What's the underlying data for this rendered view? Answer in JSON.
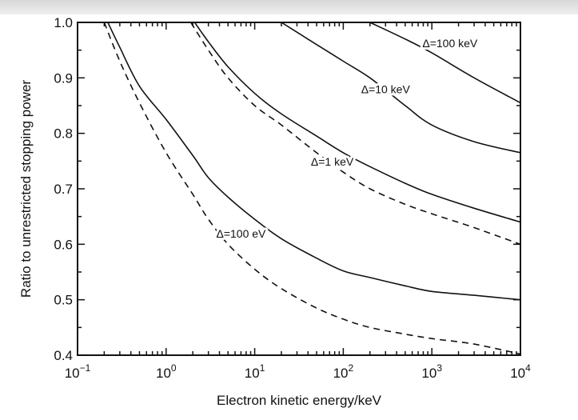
{
  "chart_data": {
    "type": "line",
    "xlabel": "Electron kinetic energy/keV",
    "ylabel": "Ratio to unrestricted stopping power",
    "xscale": "log",
    "xlim": [
      0.1,
      10000
    ],
    "ylim": [
      0.4,
      1.0
    ],
    "xticks": [
      {
        "value": 0.1,
        "base": "10",
        "exp": "−1"
      },
      {
        "value": 1,
        "base": "10",
        "exp": "0"
      },
      {
        "value": 10,
        "base": "10",
        "exp": "1"
      },
      {
        "value": 100,
        "base": "10",
        "exp": "2"
      },
      {
        "value": 1000,
        "base": "10",
        "exp": "3"
      },
      {
        "value": 10000,
        "base": "10",
        "exp": "4"
      }
    ],
    "yticks": [
      "0.4",
      "0.5",
      "0.6",
      "0.7",
      "0.8",
      "0.9",
      "1.0"
    ],
    "grid": false,
    "series": [
      {
        "style": "solid",
        "points": [
          [
            0.22,
            1.0
          ],
          [
            0.3,
            0.955
          ],
          [
            0.5,
            0.885
          ],
          [
            1,
            0.825
          ],
          [
            2,
            0.76
          ],
          [
            3,
            0.72
          ],
          [
            5,
            0.685
          ],
          [
            10,
            0.645
          ],
          [
            20,
            0.61
          ],
          [
            50,
            0.575
          ],
          [
            100,
            0.552
          ],
          [
            200,
            0.54
          ],
          [
            500,
            0.525
          ],
          [
            1000,
            0.515
          ],
          [
            3000,
            0.508
          ],
          [
            10000,
            0.5
          ]
        ]
      },
      {
        "style": "dashed",
        "points": [
          [
            0.2,
            1.0
          ],
          [
            0.3,
            0.93
          ],
          [
            0.5,
            0.855
          ],
          [
            1,
            0.765
          ],
          [
            2,
            0.69
          ],
          [
            3,
            0.645
          ],
          [
            5,
            0.6
          ],
          [
            10,
            0.555
          ],
          [
            20,
            0.52
          ],
          [
            50,
            0.485
          ],
          [
            100,
            0.465
          ],
          [
            200,
            0.45
          ],
          [
            500,
            0.438
          ],
          [
            1000,
            0.43
          ],
          [
            3000,
            0.42
          ],
          [
            10000,
            0.402
          ]
        ]
      },
      {
        "style": "solid",
        "points": [
          [
            2.1,
            1.0
          ],
          [
            3,
            0.965
          ],
          [
            5,
            0.92
          ],
          [
            10,
            0.872
          ],
          [
            20,
            0.835
          ],
          [
            50,
            0.795
          ],
          [
            100,
            0.765
          ],
          [
            200,
            0.74
          ],
          [
            500,
            0.71
          ],
          [
            1000,
            0.69
          ],
          [
            3000,
            0.665
          ],
          [
            10000,
            0.64
          ]
        ]
      },
      {
        "style": "dashed",
        "points": [
          [
            1.9,
            1.0
          ],
          [
            3,
            0.95
          ],
          [
            5,
            0.9
          ],
          [
            10,
            0.85
          ],
          [
            20,
            0.815
          ],
          [
            50,
            0.765
          ],
          [
            100,
            0.73
          ],
          [
            200,
            0.7
          ],
          [
            500,
            0.672
          ],
          [
            1000,
            0.655
          ],
          [
            3000,
            0.63
          ],
          [
            10000,
            0.6
          ]
        ]
      },
      {
        "style": "solid",
        "points": [
          [
            20,
            1.0
          ],
          [
            50,
            0.96
          ],
          [
            100,
            0.93
          ],
          [
            200,
            0.9
          ],
          [
            500,
            0.85
          ],
          [
            1000,
            0.815
          ],
          [
            3000,
            0.785
          ],
          [
            10000,
            0.765
          ]
        ]
      },
      {
        "style": "solid",
        "points": [
          [
            200,
            1.0
          ],
          [
            500,
            0.97
          ],
          [
            1000,
            0.945
          ],
          [
            3000,
            0.9
          ],
          [
            10000,
            0.855
          ]
        ]
      }
    ],
    "annotations": [
      {
        "text": "Δ=100 eV",
        "x": 7,
        "y": 0.612
      },
      {
        "text": "Δ=1 keV",
        "x": 75,
        "y": 0.742
      },
      {
        "text": "Δ=10 keV",
        "x": 300,
        "y": 0.872
      },
      {
        "text": "Δ=100 keV",
        "x": 1600,
        "y": 0.955
      }
    ]
  }
}
